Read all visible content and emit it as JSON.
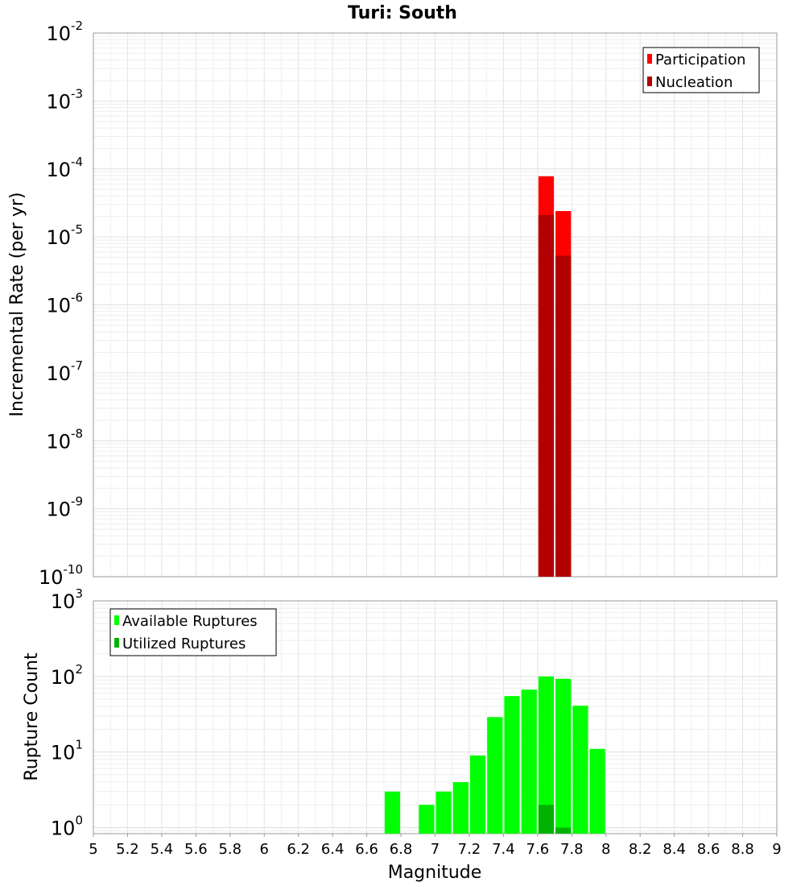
{
  "chart_data": [
    {
      "type": "bar",
      "title": "Turi: South",
      "xlabel": "",
      "ylabel": "Incremental Rate (per yr)",
      "yscale": "log",
      "ylim_exp": [
        -10,
        -2
      ],
      "xlim": [
        5,
        9
      ],
      "bin_width": 0.1,
      "y_tick_base": "10",
      "y_tick_exps": [
        "-10",
        "-9",
        "-8",
        "-7",
        "-6",
        "-5",
        "-4",
        "-3",
        "-2"
      ],
      "legend_position": "top-right",
      "series": [
        {
          "name": "Participation",
          "color": "#ff0000",
          "points": [
            {
              "x": 7.65,
              "y": 7.8e-05
            },
            {
              "x": 7.75,
              "y": 2.4e-05
            }
          ]
        },
        {
          "name": "Nucleation",
          "color": "#b30000",
          "points": [
            {
              "x": 7.65,
              "y": 2.1e-05
            },
            {
              "x": 7.75,
              "y": 5.3e-06
            }
          ]
        }
      ]
    },
    {
      "type": "bar",
      "xlabel": "Magnitude",
      "ylabel": "Rupture Count",
      "yscale": "log",
      "ylim_exp": [
        -0.08,
        3
      ],
      "xlim": [
        5,
        9
      ],
      "bin_width": 0.1,
      "x_ticks": [
        "5",
        "5.2",
        "5.4",
        "5.6",
        "5.8",
        "6",
        "6.2",
        "6.4",
        "6.6",
        "6.8",
        "7",
        "7.2",
        "7.4",
        "7.6",
        "7.8",
        "8",
        "8.2",
        "8.4",
        "8.6",
        "8.8",
        "9"
      ],
      "y_tick_base": "10",
      "y_tick_exps": [
        "0",
        "1",
        "2",
        "3"
      ],
      "legend_position": "top-left",
      "series": [
        {
          "name": "Available Ruptures",
          "color": "#00ff00",
          "points": [
            {
              "x": 6.75,
              "y": 3
            },
            {
              "x": 6.95,
              "y": 2
            },
            {
              "x": 7.05,
              "y": 3
            },
            {
              "x": 7.15,
              "y": 4
            },
            {
              "x": 7.25,
              "y": 9
            },
            {
              "x": 7.35,
              "y": 29
            },
            {
              "x": 7.45,
              "y": 55
            },
            {
              "x": 7.55,
              "y": 67
            },
            {
              "x": 7.65,
              "y": 100
            },
            {
              "x": 7.75,
              "y": 93
            },
            {
              "x": 7.85,
              "y": 41
            },
            {
              "x": 7.95,
              "y": 11
            }
          ]
        },
        {
          "name": "Utilized Ruptures",
          "color": "#00b300",
          "points": [
            {
              "x": 7.65,
              "y": 2
            },
            {
              "x": 7.75,
              "y": 1
            }
          ]
        }
      ]
    }
  ]
}
